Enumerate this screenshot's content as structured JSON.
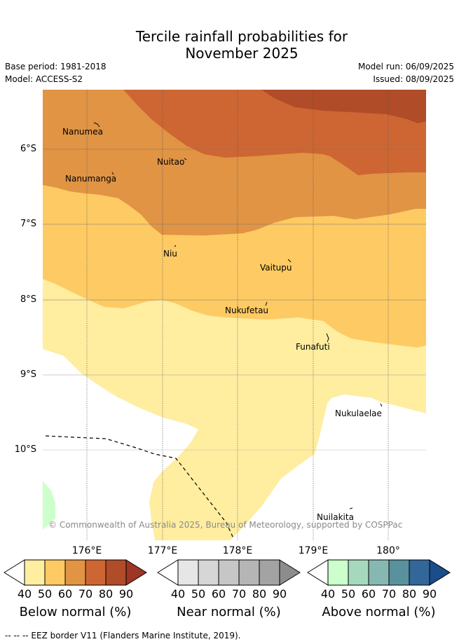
{
  "title_line1": "Tercile rainfall probabilities for",
  "title_line2": "November 2025",
  "base_period": "Base period: 1981-2018",
  "model": "Model: ACCESS-S2",
  "model_run": "Model run: 06/09/2025",
  "issued": "Issued: 08/09/2025",
  "lat_labels": [
    "6°S",
    "7°S",
    "8°S",
    "9°S",
    "10°S"
  ],
  "lon_labels": [
    "176°E",
    "177°E",
    "178°E",
    "179°E",
    "180°"
  ],
  "places": [
    "Nanumea",
    "Nuitao",
    "Nanumanga",
    "Niu",
    "Vaitupu",
    "Nukufetau",
    "Funafuti",
    "Nukulaelae",
    "Nuilakita"
  ],
  "credit": "© Commonwealth of Australia 2025, Bureau of Meteorology, supported by COSPPac",
  "colorbars": [
    {
      "title": "Below normal (%)",
      "ticks": [
        "40",
        "50",
        "60",
        "70",
        "80",
        "90"
      ],
      "colors": [
        "#ffffff",
        "#ffeda0",
        "#feca63",
        "#e09444",
        "#cd6633",
        "#b04c28",
        "#9e3526"
      ]
    },
    {
      "title": "Near normal (%)",
      "ticks": [
        "40",
        "50",
        "60",
        "70",
        "80",
        "90"
      ],
      "colors": [
        "#ffffff",
        "#e6e6e6",
        "#d6d6d6",
        "#c6c6c6",
        "#b5b5b5",
        "#a3a3a3",
        "#8c8c8c"
      ]
    },
    {
      "title": "Above normal (%)",
      "ticks": [
        "40",
        "50",
        "60",
        "70",
        "80",
        "90"
      ],
      "colors": [
        "#ffffff",
        "#ccffcc",
        "#a6d8bd",
        "#86b8b1",
        "#5a919e",
        "#336699",
        "#1a4d8a"
      ]
    }
  ],
  "footer": "-- -- -- EEZ border V11 (Flanders Marine Institute, 2019)."
}
